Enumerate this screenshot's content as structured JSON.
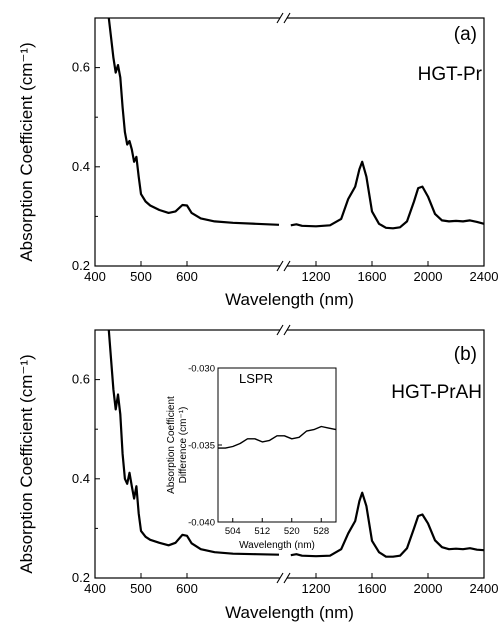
{
  "chart_data": [
    {
      "type": "line",
      "panel_label": "(a)",
      "sample_label": "HGT-Pr",
      "ylabel": "Absorption Coefficient (cm⁻¹)",
      "xlabel": "Wavelength (nm)",
      "ylim": [
        0.2,
        0.7
      ],
      "yticks": [
        "0.2",
        "0.4",
        "0.6"
      ],
      "axis_break": true,
      "segments": [
        {
          "xlim": [
            400,
            800
          ],
          "xticks": [
            "400",
            "500",
            "600"
          ],
          "x": [
            430,
            435,
            440,
            445,
            450,
            455,
            460,
            465,
            470,
            475,
            480,
            485,
            490,
            495,
            500,
            510,
            520,
            540,
            560,
            575,
            590,
            600,
            610,
            630,
            660,
            700,
            750,
            800
          ],
          "y": [
            0.7,
            0.66,
            0.62,
            0.59,
            0.605,
            0.58,
            0.52,
            0.47,
            0.445,
            0.452,
            0.435,
            0.41,
            0.42,
            0.38,
            0.345,
            0.33,
            0.322,
            0.313,
            0.307,
            0.31,
            0.323,
            0.322,
            0.307,
            0.296,
            0.29,
            0.287,
            0.285,
            0.283
          ]
        },
        {
          "xlim": [
            1000,
            2400
          ],
          "xticks": [
            "1200",
            "1600",
            "2000",
            "2400"
          ],
          "x": [
            1020,
            1060,
            1100,
            1200,
            1300,
            1380,
            1430,
            1450,
            1480,
            1510,
            1530,
            1560,
            1600,
            1650,
            1700,
            1750,
            1800,
            1850,
            1900,
            1930,
            1960,
            2000,
            2050,
            2100,
            2150,
            2200,
            2250,
            2300,
            2350,
            2400
          ],
          "y": [
            0.282,
            0.284,
            0.281,
            0.28,
            0.282,
            0.295,
            0.335,
            0.345,
            0.36,
            0.395,
            0.41,
            0.38,
            0.31,
            0.285,
            0.277,
            0.276,
            0.278,
            0.29,
            0.33,
            0.357,
            0.36,
            0.34,
            0.305,
            0.292,
            0.29,
            0.291,
            0.29,
            0.292,
            0.289,
            0.285
          ]
        }
      ]
    },
    {
      "type": "line",
      "panel_label": "(b)",
      "sample_label": "HGT-PrAH",
      "ylabel": "Absorption Coefficient (cm⁻¹)",
      "xlabel": "Wavelength (nm)",
      "ylim": [
        0.2,
        0.7
      ],
      "yticks": [
        "0.2",
        "0.4",
        "0.6"
      ],
      "axis_break": true,
      "segments": [
        {
          "xlim": [
            400,
            800
          ],
          "xticks": [
            "400",
            "500",
            "600"
          ],
          "x": [
            430,
            435,
            440,
            445,
            450,
            455,
            460,
            465,
            470,
            475,
            480,
            485,
            490,
            495,
            500,
            510,
            520,
            540,
            560,
            575,
            590,
            600,
            610,
            630,
            660,
            700,
            750,
            800
          ],
          "y": [
            0.7,
            0.64,
            0.58,
            0.54,
            0.57,
            0.53,
            0.45,
            0.4,
            0.39,
            0.412,
            0.385,
            0.36,
            0.385,
            0.33,
            0.295,
            0.283,
            0.277,
            0.271,
            0.266,
            0.271,
            0.287,
            0.285,
            0.27,
            0.258,
            0.252,
            0.249,
            0.248,
            0.247
          ]
        },
        {
          "xlim": [
            1000,
            2400
          ],
          "xticks": [
            "1200",
            "1600",
            "2000",
            "2400"
          ],
          "x": [
            1020,
            1060,
            1100,
            1200,
            1300,
            1380,
            1430,
            1450,
            1480,
            1510,
            1530,
            1560,
            1600,
            1650,
            1700,
            1750,
            1800,
            1850,
            1900,
            1930,
            1960,
            2000,
            2050,
            2100,
            2150,
            2200,
            2250,
            2300,
            2350,
            2400
          ],
          "y": [
            0.246,
            0.248,
            0.245,
            0.244,
            0.245,
            0.258,
            0.29,
            0.3,
            0.315,
            0.355,
            0.372,
            0.345,
            0.275,
            0.252,
            0.243,
            0.243,
            0.245,
            0.26,
            0.3,
            0.325,
            0.328,
            0.31,
            0.276,
            0.262,
            0.258,
            0.259,
            0.258,
            0.26,
            0.257,
            0.256
          ]
        }
      ],
      "inset": {
        "type": "line",
        "annotation": "LSPR",
        "ylabel_lines": [
          "Absorption Coefficient",
          "Difference (cm⁻¹)"
        ],
        "xlabel": "Wavelength (nm)",
        "xlim": [
          500,
          532
        ],
        "ylim": [
          -0.04,
          -0.03
        ],
        "xticks": [
          "504",
          "512",
          "520",
          "528"
        ],
        "yticks": [
          "-0.040",
          "-0.035",
          "-0.030"
        ],
        "x": [
          500,
          502,
          504,
          506,
          508,
          510,
          512,
          514,
          516,
          518,
          520,
          522,
          524,
          526,
          528,
          530,
          532
        ],
        "y": [
          -0.0352,
          -0.0352,
          -0.0351,
          -0.0349,
          -0.0346,
          -0.0346,
          -0.0348,
          -0.0347,
          -0.0344,
          -0.0344,
          -0.0346,
          -0.0345,
          -0.0341,
          -0.034,
          -0.0338,
          -0.0339,
          -0.034
        ]
      }
    }
  ]
}
